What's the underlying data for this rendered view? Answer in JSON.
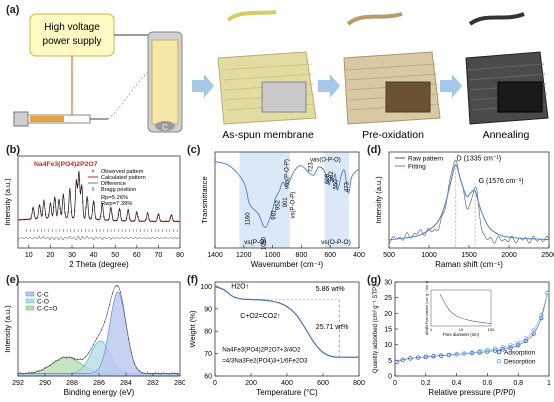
{
  "panel_a": {
    "label": "(a)",
    "power_supply": [
      "High voltage",
      "power supply"
    ],
    "steps": [
      "As-spun membrane",
      "Pre-oxidation",
      "Annealing"
    ]
  },
  "chart_data": [
    {
      "panel": "(b)",
      "type": "line",
      "title": "Na4Fe3(PO4)2P2O7",
      "xlabel": "2 Theta (degree)",
      "ylabel": "Intensity (a.u.)",
      "xlim": [
        5,
        80
      ],
      "xticks": [
        10,
        20,
        30,
        40,
        50,
        60,
        70,
        80
      ],
      "legend": [
        "Observed pattern",
        "Calculated pattern",
        "Difference",
        "Bragg position"
      ],
      "annotations": [
        "Rp=5.26%",
        "Rwp=7.39%"
      ],
      "peaks": [
        {
          "x": 12,
          "y": 0.25
        },
        {
          "x": 15,
          "y": 0.3
        },
        {
          "x": 17,
          "y": 0.38
        },
        {
          "x": 20,
          "y": 0.32
        },
        {
          "x": 22,
          "y": 0.45
        },
        {
          "x": 24,
          "y": 0.4
        },
        {
          "x": 26,
          "y": 0.5
        },
        {
          "x": 29,
          "y": 0.62
        },
        {
          "x": 32,
          "y": 0.8
        },
        {
          "x": 33.2,
          "y": 1.0
        },
        {
          "x": 34.5,
          "y": 0.72
        },
        {
          "x": 37,
          "y": 0.48
        },
        {
          "x": 40,
          "y": 0.4
        },
        {
          "x": 44,
          "y": 0.35
        },
        {
          "x": 48,
          "y": 0.28
        },
        {
          "x": 52,
          "y": 0.26
        },
        {
          "x": 56,
          "y": 0.24
        },
        {
          "x": 60,
          "y": 0.2
        },
        {
          "x": 65,
          "y": 0.18
        },
        {
          "x": 70,
          "y": 0.16
        },
        {
          "x": 76,
          "y": 0.14
        }
      ]
    },
    {
      "panel": "(c)",
      "type": "line",
      "xlabel": "Wavenumber (cm⁻¹)",
      "ylabel": "Transmittance",
      "xlim": [
        1400,
        400
      ],
      "xticks": [
        1400,
        1200,
        1000,
        800,
        600,
        400
      ],
      "shaded_bands": [
        [
          1230,
          880
        ],
        [
          640,
          470
        ]
      ],
      "band_labels": [
        "νs(P-O)",
        "νs(O-P-O)"
      ],
      "annotations": [
        "1160",
        "1050",
        "981",
        "952",
        "901",
        "νas(P-O-P)",
        "νs(P-O-P)",
        "723",
        "νas(O-P-O)",
        "608",
        "582",
        "550",
        "473"
      ],
      "x": [
        1400,
        1300,
        1200,
        1160,
        1100,
        1050,
        1000,
        981,
        952,
        930,
        901,
        850,
        800,
        723,
        680,
        640,
        608,
        595,
        582,
        565,
        550,
        520,
        500,
        473,
        450,
        400
      ],
      "y": [
        0.93,
        0.9,
        0.78,
        0.62,
        0.55,
        0.45,
        0.58,
        0.66,
        0.72,
        0.78,
        0.75,
        0.86,
        0.9,
        0.83,
        0.89,
        0.86,
        0.76,
        0.82,
        0.78,
        0.84,
        0.72,
        0.84,
        0.86,
        0.7,
        0.82,
        0.88
      ]
    },
    {
      "panel": "(d)",
      "type": "line",
      "xlabel": "Raman shift (cm⁻¹)",
      "ylabel": "Intensity (a.u.)",
      "xlim": [
        500,
        2500
      ],
      "xticks": [
        500,
        1000,
        1500,
        2000,
        2500
      ],
      "legend": [
        "Raw pattern",
        "Fitting"
      ],
      "annotations": [
        "D (1335 cm⁻¹)",
        "G (1576 cm⁻¹)"
      ],
      "x": [
        500,
        700,
        900,
        1100,
        1200,
        1280,
        1335,
        1400,
        1470,
        1520,
        1576,
        1650,
        1750,
        1900,
        2100,
        2300,
        2500
      ],
      "y": [
        0.1,
        0.12,
        0.16,
        0.3,
        0.52,
        0.82,
        1.0,
        0.8,
        0.62,
        0.66,
        0.68,
        0.45,
        0.25,
        0.15,
        0.12,
        0.11,
        0.1
      ]
    },
    {
      "panel": "(e)",
      "type": "area",
      "xlabel": "Binding energy (eV)",
      "ylabel": "Intensity (a.u.)",
      "xlim": [
        292,
        280
      ],
      "xticks": [
        292,
        290,
        288,
        286,
        284,
        282,
        280
      ],
      "legend": [
        "C-C",
        "C-O",
        "C-C=O"
      ],
      "components": [
        {
          "name": "C-C",
          "center": 284.6,
          "height": 1.0,
          "width": 0.85
        },
        {
          "name": "C-O",
          "center": 285.9,
          "height": 0.4,
          "width": 1.0
        },
        {
          "name": "C-C=O",
          "center": 288.4,
          "height": 0.2,
          "width": 1.5
        }
      ]
    },
    {
      "panel": "(f)",
      "type": "line",
      "xlabel": "Temperature (°C)",
      "ylabel": "Weight (%)",
      "xlim": [
        0,
        800
      ],
      "ylim": [
        60,
        102
      ],
      "xticks": [
        0,
        200,
        400,
        600,
        800
      ],
      "yticks": [
        60,
        70,
        80,
        90,
        100
      ],
      "annotations": [
        "H2O↑",
        "5.86 wt%",
        "C+O2=CO2↑",
        "25.71 wt%"
      ],
      "equation": [
        "Na4Fe3(PO4)2P2O7+3/4O2",
        "=4/3Na3Fe2(PO4)3+1/6Fe2O3"
      ],
      "x": [
        0,
        50,
        100,
        150,
        200,
        250,
        300,
        350,
        400,
        450,
        500,
        550,
        600,
        650,
        700,
        800
      ],
      "y": [
        100,
        98.5,
        95.5,
        94.4,
        94.2,
        94.0,
        93.6,
        92.8,
        91.0,
        87.5,
        81.5,
        75.0,
        70.5,
        68.7,
        68.4,
        68.4
      ]
    },
    {
      "panel": "(g)",
      "type": "line",
      "xlabel": "Relative pressure (P/P0)",
      "ylabel": "Quantity adsorbed (cm³ g⁻¹ STP)",
      "xlim": [
        0,
        1.0
      ],
      "ylim": [
        0,
        30
      ],
      "xticks": [
        0,
        0.2,
        0.4,
        0.6,
        0.8,
        1.0
      ],
      "yticks": [
        0,
        5,
        10,
        15,
        20,
        25,
        30
      ],
      "legend": [
        "Adsorption",
        "Desorption"
      ],
      "series": [
        {
          "name": "Adsorption",
          "x": [
            0.01,
            0.05,
            0.1,
            0.15,
            0.2,
            0.25,
            0.3,
            0.35,
            0.4,
            0.45,
            0.5,
            0.55,
            0.6,
            0.65,
            0.7,
            0.75,
            0.8,
            0.85,
            0.9,
            0.95,
            0.99
          ],
          "y": [
            4.5,
            5.2,
            5.6,
            5.9,
            6.1,
            6.3,
            6.5,
            6.7,
            6.9,
            7.1,
            7.3,
            7.5,
            7.8,
            8.1,
            8.5,
            9.0,
            9.8,
            11.2,
            13.5,
            18.5,
            26.5
          ]
        },
        {
          "name": "Desorption",
          "x": [
            0.99,
            0.95,
            0.9,
            0.85,
            0.8,
            0.75,
            0.7,
            0.65,
            0.6,
            0.55,
            0.5,
            0.45,
            0.4
          ],
          "y": [
            26.5,
            19.5,
            14.5,
            12.0,
            10.6,
            9.8,
            9.2,
            8.7,
            8.3,
            7.9,
            7.5,
            7.2,
            7.0
          ]
        }
      ],
      "inset": {
        "xlabel": "Pore diameter (nm)",
        "ylabel": "dV/dD Pore volume (cm³ g⁻¹ nm⁻¹)",
        "xticks": [
          "1",
          "10",
          "100"
        ],
        "x": [
          2,
          3,
          4,
          5,
          7,
          10,
          15,
          20,
          30,
          50,
          80,
          100
        ],
        "y": [
          0.8,
          0.55,
          0.4,
          0.33,
          0.25,
          0.2,
          0.16,
          0.14,
          0.11,
          0.09,
          0.07,
          0.06
        ]
      }
    }
  ]
}
